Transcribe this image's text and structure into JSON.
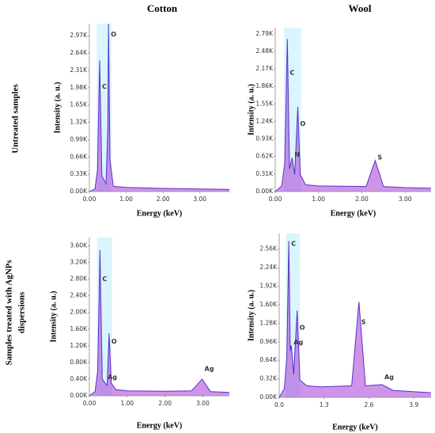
{
  "column_titles": [
    "Cotton",
    "Wool"
  ],
  "row_labels": [
    [
      "Untreated samples"
    ],
    [
      "Samples treated with AgNPs",
      "dispersions"
    ]
  ],
  "chart_data": [
    {
      "type": "line",
      "xlabel": "Energy (keV)",
      "ylabel": "Intensity (a. u.)",
      "color": "#a83cd6",
      "x": [
        0,
        0.15,
        0.22,
        0.28,
        0.34,
        0.45,
        0.5,
        0.52,
        0.56,
        0.65,
        1.0,
        2.0,
        3.0,
        3.8
      ],
      "values": [
        0,
        50,
        400,
        2500,
        300,
        150,
        1200,
        3200,
        600,
        100,
        80,
        60,
        50,
        40
      ],
      "xlim": [
        0,
        3.8
      ],
      "ylim": [
        0,
        3200
      ],
      "xticks": [
        {
          "value": 0,
          "label": "0.00"
        },
        {
          "value": 1,
          "label": "1.00"
        },
        {
          "value": 2,
          "label": "2.00"
        },
        {
          "value": 3,
          "label": "3.00"
        }
      ],
      "yticks": [
        {
          "value": 0,
          "label": "0.00K"
        },
        {
          "value": 330,
          "label": "0.33K"
        },
        {
          "value": 660,
          "label": "0.66K"
        },
        {
          "value": 990,
          "label": "0.99K"
        },
        {
          "value": 1320,
          "label": "1.32K"
        },
        {
          "value": 1650,
          "label": "1.65K"
        },
        {
          "value": 1980,
          "label": "1.98K"
        },
        {
          "value": 2310,
          "label": "2.31K"
        },
        {
          "value": 2640,
          "label": "2.64K"
        },
        {
          "value": 2970,
          "label": "2.97K"
        }
      ],
      "annotations": [
        {
          "text": "C",
          "x": 0.28,
          "y": 2000
        },
        {
          "text": "O",
          "x": 0.52,
          "y": 3000
        }
      ]
    },
    {
      "type": "line",
      "xlabel": "Energy (keV)",
      "ylabel": "Intensity (a. u.)",
      "color": "#a83cd6",
      "x": [
        0,
        0.15,
        0.22,
        0.28,
        0.33,
        0.39,
        0.45,
        0.52,
        0.58,
        0.7,
        1.0,
        2.1,
        2.31,
        2.5,
        3.0,
        3.6
      ],
      "values": [
        0,
        100,
        500,
        2700,
        400,
        600,
        300,
        1500,
        300,
        120,
        100,
        90,
        550,
        90,
        70,
        60
      ],
      "xlim": [
        0,
        3.6
      ],
      "ylim": [
        0,
        2900
      ],
      "xticks": [
        {
          "value": 0,
          "label": "0.00"
        },
        {
          "value": 1,
          "label": "1.00"
        },
        {
          "value": 2,
          "label": "2.00"
        },
        {
          "value": 3,
          "label": "3.00"
        }
      ],
      "yticks": [
        {
          "value": 0,
          "label": "0.00K"
        },
        {
          "value": 310,
          "label": "0.31K"
        },
        {
          "value": 620,
          "label": "0.62K"
        },
        {
          "value": 930,
          "label": "0.93K"
        },
        {
          "value": 1240,
          "label": "1.24K"
        },
        {
          "value": 1550,
          "label": "1.55K"
        },
        {
          "value": 1860,
          "label": "1.86K"
        },
        {
          "value": 2170,
          "label": "2.17K"
        },
        {
          "value": 2480,
          "label": "2.48K"
        },
        {
          "value": 2790,
          "label": "2.79K"
        }
      ],
      "annotations": [
        {
          "text": "C",
          "x": 0.28,
          "y": 2100
        },
        {
          "text": "N",
          "x": 0.39,
          "y": 650
        },
        {
          "text": "O",
          "x": 0.52,
          "y": 1200
        },
        {
          "text": "S",
          "x": 2.31,
          "y": 600
        }
      ]
    },
    {
      "type": "line",
      "xlabel": "Energy (keV)",
      "ylabel": "Intensity (a. u.)",
      "color": "#a83cd6",
      "x": [
        0,
        0.15,
        0.22,
        0.28,
        0.34,
        0.42,
        0.47,
        0.52,
        0.58,
        0.7,
        1.0,
        2.0,
        2.7,
        2.98,
        3.2,
        3.7
      ],
      "values": [
        0,
        100,
        600,
        3500,
        400,
        300,
        250,
        1500,
        300,
        150,
        120,
        110,
        120,
        400,
        100,
        80
      ],
      "xlim": [
        0,
        3.7
      ],
      "ylim": [
        0,
        3800
      ],
      "xticks": [
        {
          "value": 0,
          "label": "0.00"
        },
        {
          "value": 1,
          "label": "1.00"
        },
        {
          "value": 2,
          "label": "2.00"
        },
        {
          "value": 3,
          "label": "3.00"
        }
      ],
      "yticks": [
        {
          "value": 0,
          "label": "0.00K"
        },
        {
          "value": 400,
          "label": "0.40K"
        },
        {
          "value": 800,
          "label": "0.80K"
        },
        {
          "value": 1200,
          "label": "1.20K"
        },
        {
          "value": 1600,
          "label": "1.60K"
        },
        {
          "value": 2000,
          "label": "2.00K"
        },
        {
          "value": 2400,
          "label": "2.40K"
        },
        {
          "value": 2800,
          "label": "2.80K"
        },
        {
          "value": 3200,
          "label": "3.20K"
        },
        {
          "value": 3600,
          "label": "3.60K"
        }
      ],
      "annotations": [
        {
          "text": "C",
          "x": 0.28,
          "y": 2800
        },
        {
          "text": "O",
          "x": 0.52,
          "y": 1300
        },
        {
          "text": "Ag",
          "x": 0.42,
          "y": 450
        },
        {
          "text": "Ag",
          "x": 2.98,
          "y": 650
        }
      ]
    },
    {
      "type": "line",
      "xlabel": "Energy (keV)",
      "ylabel": "Intensity (a. u.)",
      "color": "#a83cd6",
      "x": [
        0,
        0.15,
        0.22,
        0.28,
        0.32,
        0.35,
        0.42,
        0.52,
        0.6,
        0.8,
        1.2,
        2.1,
        2.31,
        2.5,
        2.98,
        3.3,
        4.4
      ],
      "values": [
        0,
        150,
        700,
        2700,
        800,
        900,
        400,
        1500,
        300,
        200,
        180,
        200,
        1650,
        200,
        220,
        120,
        80
      ],
      "xlim": [
        0,
        4.4
      ],
      "ylim": [
        0,
        2830
      ],
      "xticks": [
        {
          "value": 0,
          "label": "0.0"
        },
        1.3,
        2.6,
        3.9
      ],
      "yticks": [
        {
          "value": 0,
          "label": "0.00K"
        },
        {
          "value": 320,
          "label": "0.32K"
        },
        {
          "value": 640,
          "label": "0.64K"
        },
        {
          "value": 960,
          "label": "0.96K"
        },
        {
          "value": 1280,
          "label": "1.28K"
        },
        {
          "value": 1600,
          "label": "1.60K"
        },
        {
          "value": 1920,
          "label": "1.92K"
        },
        {
          "value": 2240,
          "label": "2.24K"
        },
        {
          "value": 2560,
          "label": "2.56K"
        }
      ],
      "annotations": [
        {
          "text": "C",
          "x": 0.28,
          "y": 2650
        },
        {
          "text": "Ag",
          "x": 0.35,
          "y": 950
        },
        {
          "text": "O",
          "x": 0.52,
          "y": 1200
        },
        {
          "text": "S",
          "x": 2.31,
          "y": 1300
        },
        {
          "text": "Ag",
          "x": 2.98,
          "y": 350
        }
      ]
    }
  ]
}
